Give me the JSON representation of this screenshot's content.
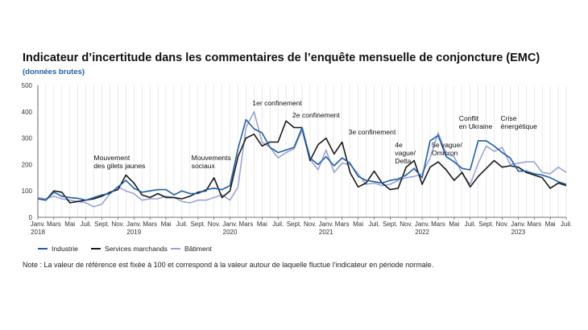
{
  "chart_data": {
    "type": "line",
    "title": "Indicateur d’incertitude dans les commentaires de l’enquête mensuelle de conjoncture (EMC)",
    "subtitle": "(données brutes)",
    "ylim": [
      0,
      500
    ],
    "yticks": [
      0,
      100,
      200,
      300,
      400,
      500
    ],
    "grid": "vertical",
    "x_start": "2018-01",
    "n_points": 67,
    "xtick_labels": [
      {
        "i": 0,
        "label": "Janv.",
        "year": "2018"
      },
      {
        "i": 2,
        "label": "Mars"
      },
      {
        "i": 4,
        "label": "Mai"
      },
      {
        "i": 6,
        "label": "Juil."
      },
      {
        "i": 8,
        "label": "Sept."
      },
      {
        "i": 10,
        "label": "Nov."
      },
      {
        "i": 12,
        "label": "Janv.",
        "year": "2019"
      },
      {
        "i": 14,
        "label": "Mars"
      },
      {
        "i": 16,
        "label": "Mai"
      },
      {
        "i": 18,
        "label": "Juil."
      },
      {
        "i": 20,
        "label": "Sept."
      },
      {
        "i": 22,
        "label": "Nov."
      },
      {
        "i": 24,
        "label": "Janv.",
        "year": "2020"
      },
      {
        "i": 26,
        "label": "Mars"
      },
      {
        "i": 28,
        "label": "Mai"
      },
      {
        "i": 30,
        "label": "Juil."
      },
      {
        "i": 32,
        "label": "Sept."
      },
      {
        "i": 34,
        "label": "Nov."
      },
      {
        "i": 36,
        "label": "Janv.",
        "year": "2021"
      },
      {
        "i": 38,
        "label": "Mars"
      },
      {
        "i": 40,
        "label": "Mai"
      },
      {
        "i": 42,
        "label": "Juil."
      },
      {
        "i": 44,
        "label": "Sept."
      },
      {
        "i": 46,
        "label": "Nov."
      },
      {
        "i": 48,
        "label": "Janv.",
        "year": "2022"
      },
      {
        "i": 50,
        "label": "Mars"
      },
      {
        "i": 52,
        "label": "Mai"
      },
      {
        "i": 54,
        "label": "Juil."
      },
      {
        "i": 56,
        "label": "Sept."
      },
      {
        "i": 58,
        "label": "Nov."
      },
      {
        "i": 60,
        "label": "Janv.",
        "year": "2023"
      },
      {
        "i": 62,
        "label": "Mars"
      },
      {
        "i": 64,
        "label": "Mai"
      },
      {
        "i": 66,
        "label": "Juil."
      }
    ],
    "series": [
      {
        "name": "Industrie",
        "color": "#1f5fa8",
        "values": [
          70,
          65,
          95,
          80,
          75,
          72,
          65,
          75,
          85,
          90,
          115,
          140,
          110,
          95,
          100,
          105,
          105,
          85,
          100,
          90,
          90,
          105,
          110,
          105,
          120,
          260,
          370,
          335,
          320,
          265,
          245,
          255,
          265,
          340,
          225,
          200,
          230,
          195,
          225,
          205,
          155,
          140,
          135,
          130,
          140,
          145,
          160,
          185,
          150,
          290,
          310,
          230,
          210,
          185,
          180,
          290,
          290,
          270,
          245,
          225,
          175,
          175,
          165,
          160,
          150,
          135,
          125
        ]
      },
      {
        "name": "Services marchands",
        "color": "#1a1a1a",
        "values": [
          70,
          65,
          100,
          95,
          55,
          60,
          65,
          70,
          80,
          95,
          105,
          160,
          130,
          85,
          75,
          90,
          75,
          75,
          70,
          80,
          95,
          100,
          150,
          75,
          100,
          230,
          300,
          315,
          270,
          285,
          285,
          365,
          340,
          340,
          215,
          275,
          300,
          240,
          285,
          170,
          115,
          130,
          175,
          130,
          105,
          110,
          190,
          215,
          125,
          190,
          210,
          180,
          140,
          170,
          115,
          155,
          185,
          215,
          190,
          195,
          190,
          170,
          160,
          150,
          110,
          130,
          120
        ]
      },
      {
        "name": "Bâtiment",
        "color": "#9aa3d8",
        "values": [
          75,
          70,
          80,
          70,
          65,
          60,
          55,
          40,
          50,
          90,
          115,
          100,
          90,
          65,
          70,
          70,
          80,
          75,
          60,
          55,
          65,
          65,
          75,
          85,
          65,
          115,
          340,
          400,
          285,
          265,
          225,
          245,
          260,
          330,
          220,
          180,
          255,
          170,
          205,
          200,
          165,
          125,
          130,
          120,
          125,
          140,
          150,
          155,
          165,
          225,
          320,
          240,
          230,
          165,
          125,
          205,
          270,
          250,
          265,
          200,
          205,
          210,
          210,
          170,
          165,
          190,
          170
        ]
      }
    ],
    "annotations": [
      {
        "lines": [
          "Mouvement",
          "des gilets jaunes"
        ],
        "i": 10
      },
      {
        "lines": [
          "Mouvements",
          "sociaux"
        ],
        "i": 22
      },
      {
        "lines": [
          "1er confinement"
        ],
        "i": 28
      },
      {
        "lines": [
          "2e confinement"
        ],
        "i": 33
      },
      {
        "lines": [
          "3e confinement"
        ],
        "i": 40
      },
      {
        "lines": [
          "4e",
          "vague/",
          "Delta"
        ],
        "i": 45
      },
      {
        "lines": [
          "5e vague/",
          "Omicron"
        ],
        "i": 50
      },
      {
        "lines": [
          "Conflit",
          "en Ukraine"
        ],
        "i": 53
      },
      {
        "lines": [
          "Crise",
          "énergétique"
        ],
        "i": 58
      }
    ],
    "note": "Note : La valeur de référence est fixée à 100 et correspond à la valeur autour de laquelle fluctue l’indicateur en période normale."
  }
}
